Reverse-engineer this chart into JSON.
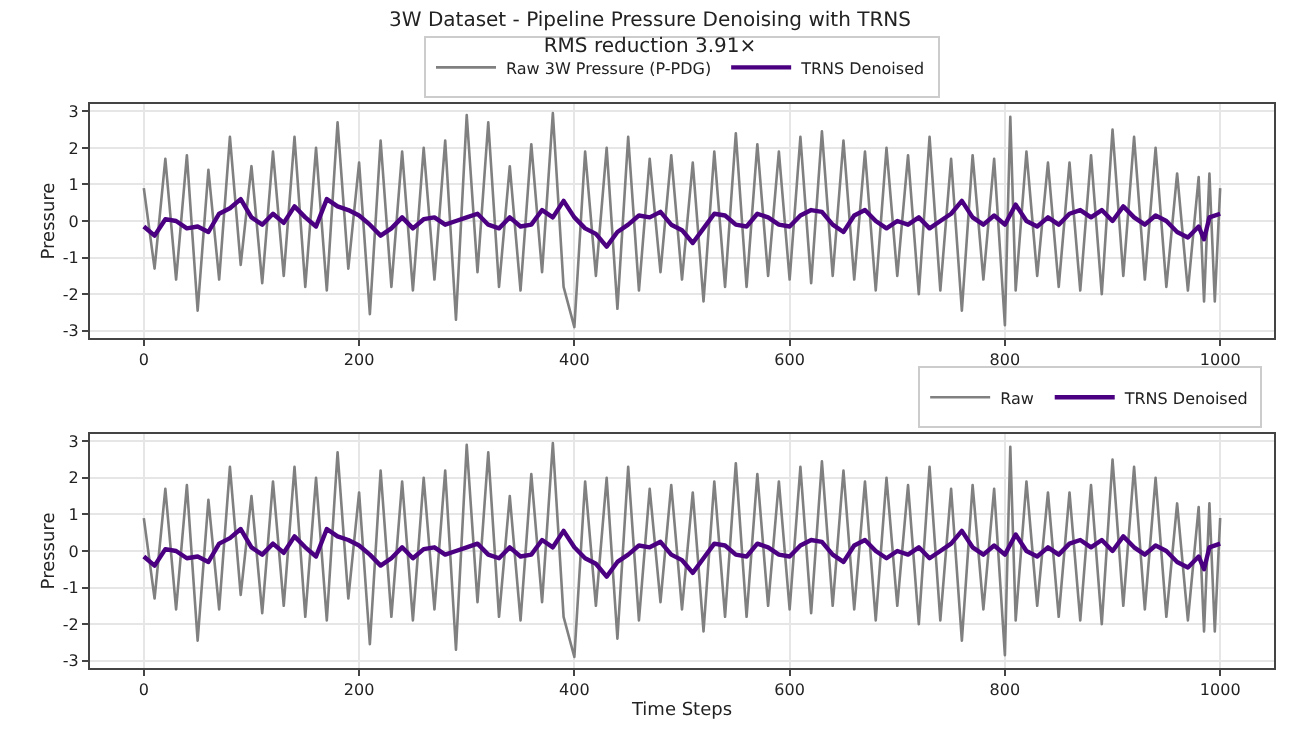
{
  "chart_data": [
    {
      "type": "line",
      "title": "3W Dataset - Pipeline Pressure Denoising with TRNS",
      "subtitle": "RMS reduction 3.91×",
      "ylabel": "Pressure",
      "xlim": [
        -50,
        1050
      ],
      "xticks": [
        0,
        200,
        400,
        600,
        800,
        1000
      ],
      "ylim": [
        -3.2,
        3.2
      ],
      "yticks": [
        -3,
        -2,
        -1,
        0,
        1,
        2,
        3
      ],
      "grid": true,
      "legend": "top center",
      "series": [
        {
          "name": "Raw 3W Pressure (P-PDG)",
          "color": "#808080",
          "x": [
            0,
            10,
            20,
            30,
            40,
            50,
            60,
            70,
            80,
            90,
            100,
            110,
            120,
            130,
            140,
            150,
            160,
            170,
            180,
            190,
            200,
            210,
            220,
            230,
            240,
            250,
            260,
            270,
            280,
            290,
            300,
            310,
            320,
            330,
            340,
            350,
            360,
            370,
            380,
            390,
            400,
            410,
            420,
            430,
            440,
            450,
            460,
            470,
            480,
            490,
            500,
            510,
            520,
            530,
            540,
            550,
            560,
            570,
            580,
            590,
            600,
            610,
            620,
            630,
            640,
            650,
            660,
            670,
            680,
            690,
            700,
            710,
            720,
            730,
            740,
            750,
            760,
            770,
            780,
            790,
            800,
            805,
            810,
            820,
            830,
            840,
            850,
            860,
            870,
            880,
            890,
            900,
            910,
            920,
            930,
            940,
            950,
            960,
            970,
            980,
            985,
            990,
            995,
            1000
          ],
          "values": [
            0.9,
            -1.3,
            1.7,
            -1.6,
            1.8,
            -2.45,
            1.4,
            -1.6,
            2.3,
            -1.2,
            1.5,
            -1.7,
            1.9,
            -1.5,
            2.3,
            -1.8,
            2.0,
            -1.9,
            2.7,
            -1.3,
            1.6,
            -2.55,
            2.2,
            -1.8,
            1.9,
            -1.9,
            2.0,
            -1.6,
            2.2,
            -2.7,
            2.9,
            -1.4,
            2.7,
            -1.8,
            1.5,
            -1.9,
            2.1,
            -1.4,
            2.95,
            -1.8,
            -2.9,
            1.9,
            -1.5,
            2.0,
            -2.4,
            2.3,
            -1.9,
            1.7,
            -1.4,
            1.8,
            -1.6,
            1.6,
            -2.2,
            1.9,
            -1.8,
            2.4,
            -1.8,
            2.1,
            -1.5,
            1.9,
            -1.6,
            2.3,
            -1.7,
            2.45,
            -1.5,
            2.2,
            -1.6,
            1.9,
            -1.9,
            2.0,
            -1.5,
            1.8,
            -2.0,
            2.3,
            -1.9,
            1.7,
            -2.45,
            1.8,
            -1.6,
            1.7,
            -2.85,
            2.85,
            -1.9,
            1.9,
            -1.5,
            1.6,
            -1.8,
            1.6,
            -1.9,
            1.8,
            -2.0,
            2.5,
            -1.5,
            2.3,
            -1.6,
            2.0,
            -1.8,
            1.3,
            -1.9,
            1.2,
            -2.2,
            1.3,
            -2.2,
            0.9
          ]
        },
        {
          "name": "TRNS Denoised",
          "color": "#4b0082",
          "x": [
            0,
            10,
            20,
            30,
            40,
            50,
            60,
            70,
            80,
            90,
            100,
            110,
            120,
            130,
            140,
            150,
            160,
            170,
            180,
            190,
            200,
            210,
            220,
            230,
            240,
            250,
            260,
            270,
            280,
            290,
            300,
            310,
            320,
            330,
            340,
            350,
            360,
            370,
            380,
            390,
            400,
            410,
            420,
            430,
            440,
            450,
            460,
            470,
            480,
            490,
            500,
            510,
            520,
            530,
            540,
            550,
            560,
            570,
            580,
            590,
            600,
            610,
            620,
            630,
            640,
            650,
            660,
            670,
            680,
            690,
            700,
            710,
            720,
            730,
            740,
            750,
            760,
            770,
            780,
            790,
            800,
            810,
            820,
            830,
            840,
            850,
            860,
            870,
            880,
            890,
            900,
            910,
            920,
            930,
            940,
            950,
            960,
            970,
            980,
            985,
            990,
            1000
          ],
          "values": [
            -0.15,
            -0.4,
            0.05,
            0.0,
            -0.2,
            -0.15,
            -0.3,
            0.2,
            0.35,
            0.6,
            0.1,
            -0.1,
            0.2,
            -0.05,
            0.4,
            0.1,
            -0.15,
            0.6,
            0.4,
            0.3,
            0.15,
            -0.1,
            -0.4,
            -0.2,
            0.1,
            -0.2,
            0.05,
            0.1,
            -0.1,
            0.0,
            0.1,
            0.2,
            -0.1,
            -0.2,
            0.1,
            -0.15,
            -0.1,
            0.3,
            0.1,
            0.55,
            0.1,
            -0.2,
            -0.35,
            -0.7,
            -0.3,
            -0.1,
            0.15,
            0.1,
            0.25,
            -0.1,
            -0.25,
            -0.6,
            -0.2,
            0.2,
            0.15,
            -0.1,
            -0.15,
            0.2,
            0.1,
            -0.1,
            -0.15,
            0.15,
            0.3,
            0.25,
            -0.1,
            -0.3,
            0.15,
            0.3,
            0.0,
            -0.2,
            0.0,
            -0.1,
            0.1,
            -0.2,
            0.0,
            0.2,
            0.55,
            0.1,
            -0.1,
            0.15,
            -0.1,
            0.45,
            0.0,
            -0.15,
            0.1,
            -0.1,
            0.2,
            0.3,
            0.1,
            0.3,
            0.0,
            0.4,
            0.1,
            -0.1,
            0.15,
            0.0,
            -0.3,
            -0.45,
            -0.15,
            -0.5,
            0.1,
            0.2
          ]
        }
      ]
    },
    {
      "type": "line",
      "xlabel": "Time Steps",
      "ylabel": "Pressure",
      "xlim": [
        -50,
        1050
      ],
      "xticks": [
        0,
        200,
        400,
        600,
        800,
        1000
      ],
      "ylim": [
        -3.2,
        3.2
      ],
      "yticks": [
        -3,
        -2,
        -1,
        0,
        1,
        2,
        3
      ],
      "grid": true,
      "legend": "top right",
      "series": [
        {
          "name": "Raw",
          "color": "#808080",
          "x": [
            0,
            10,
            20,
            30,
            40,
            50,
            60,
            70,
            80,
            90,
            100,
            110,
            120,
            130,
            140,
            150,
            160,
            170,
            180,
            190,
            200,
            210,
            220,
            230,
            240,
            250,
            260,
            270,
            280,
            290,
            300,
            310,
            320,
            330,
            340,
            350,
            360,
            370,
            380,
            390,
            400,
            410,
            420,
            430,
            440,
            450,
            460,
            470,
            480,
            490,
            500,
            510,
            520,
            530,
            540,
            550,
            560,
            570,
            580,
            590,
            600,
            610,
            620,
            630,
            640,
            650,
            660,
            670,
            680,
            690,
            700,
            710,
            720,
            730,
            740,
            750,
            760,
            770,
            780,
            790,
            800,
            805,
            810,
            820,
            830,
            840,
            850,
            860,
            870,
            880,
            890,
            900,
            910,
            920,
            930,
            940,
            950,
            960,
            970,
            980,
            985,
            990,
            995,
            1000
          ],
          "values": [
            0.9,
            -1.3,
            1.7,
            -1.6,
            1.8,
            -2.45,
            1.4,
            -1.6,
            2.3,
            -1.2,
            1.5,
            -1.7,
            1.9,
            -1.5,
            2.3,
            -1.8,
            2.0,
            -1.9,
            2.7,
            -1.3,
            1.6,
            -2.55,
            2.2,
            -1.8,
            1.9,
            -1.9,
            2.0,
            -1.6,
            2.2,
            -2.7,
            2.9,
            -1.4,
            2.7,
            -1.8,
            1.5,
            -1.9,
            2.1,
            -1.4,
            2.95,
            -1.8,
            -2.9,
            1.9,
            -1.5,
            2.0,
            -2.4,
            2.3,
            -1.9,
            1.7,
            -1.4,
            1.8,
            -1.6,
            1.6,
            -2.2,
            1.9,
            -1.8,
            2.4,
            -1.8,
            2.1,
            -1.5,
            1.9,
            -1.6,
            2.3,
            -1.7,
            2.45,
            -1.5,
            2.2,
            -1.6,
            1.9,
            -1.9,
            2.0,
            -1.5,
            1.8,
            -2.0,
            2.3,
            -1.9,
            1.7,
            -2.45,
            1.8,
            -1.6,
            1.7,
            -2.85,
            2.85,
            -1.9,
            1.9,
            -1.5,
            1.6,
            -1.8,
            1.6,
            -1.9,
            1.8,
            -2.0,
            2.5,
            -1.5,
            2.3,
            -1.6,
            2.0,
            -1.8,
            1.3,
            -1.9,
            1.2,
            -2.2,
            1.3,
            -2.2,
            0.9
          ]
        },
        {
          "name": "TRNS Denoised",
          "color": "#4b0082",
          "x": [
            0,
            10,
            20,
            30,
            40,
            50,
            60,
            70,
            80,
            90,
            100,
            110,
            120,
            130,
            140,
            150,
            160,
            170,
            180,
            190,
            200,
            210,
            220,
            230,
            240,
            250,
            260,
            270,
            280,
            290,
            300,
            310,
            320,
            330,
            340,
            350,
            360,
            370,
            380,
            390,
            400,
            410,
            420,
            430,
            440,
            450,
            460,
            470,
            480,
            490,
            500,
            510,
            520,
            530,
            540,
            550,
            560,
            570,
            580,
            590,
            600,
            610,
            620,
            630,
            640,
            650,
            660,
            670,
            680,
            690,
            700,
            710,
            720,
            730,
            740,
            750,
            760,
            770,
            780,
            790,
            800,
            810,
            820,
            830,
            840,
            850,
            860,
            870,
            880,
            890,
            900,
            910,
            920,
            930,
            940,
            950,
            960,
            970,
            980,
            985,
            990,
            1000
          ],
          "values": [
            -0.15,
            -0.4,
            0.05,
            0.0,
            -0.2,
            -0.15,
            -0.3,
            0.2,
            0.35,
            0.6,
            0.1,
            -0.1,
            0.2,
            -0.05,
            0.4,
            0.1,
            -0.15,
            0.6,
            0.4,
            0.3,
            0.15,
            -0.1,
            -0.4,
            -0.2,
            0.1,
            -0.2,
            0.05,
            0.1,
            -0.1,
            0.0,
            0.1,
            0.2,
            -0.1,
            -0.2,
            0.1,
            -0.15,
            -0.1,
            0.3,
            0.1,
            0.55,
            0.1,
            -0.2,
            -0.35,
            -0.7,
            -0.3,
            -0.1,
            0.15,
            0.1,
            0.25,
            -0.1,
            -0.25,
            -0.6,
            -0.2,
            0.2,
            0.15,
            -0.1,
            -0.15,
            0.2,
            0.1,
            -0.1,
            -0.15,
            0.15,
            0.3,
            0.25,
            -0.1,
            -0.3,
            0.15,
            0.3,
            0.0,
            -0.2,
            0.0,
            -0.1,
            0.1,
            -0.2,
            0.0,
            0.2,
            0.55,
            0.1,
            -0.1,
            0.15,
            -0.1,
            0.45,
            0.0,
            -0.15,
            0.1,
            -0.1,
            0.2,
            0.3,
            0.1,
            0.3,
            0.0,
            0.4,
            0.1,
            -0.1,
            0.15,
            0.0,
            -0.3,
            -0.45,
            -0.15,
            -0.5,
            0.1,
            0.2
          ]
        }
      ]
    }
  ]
}
